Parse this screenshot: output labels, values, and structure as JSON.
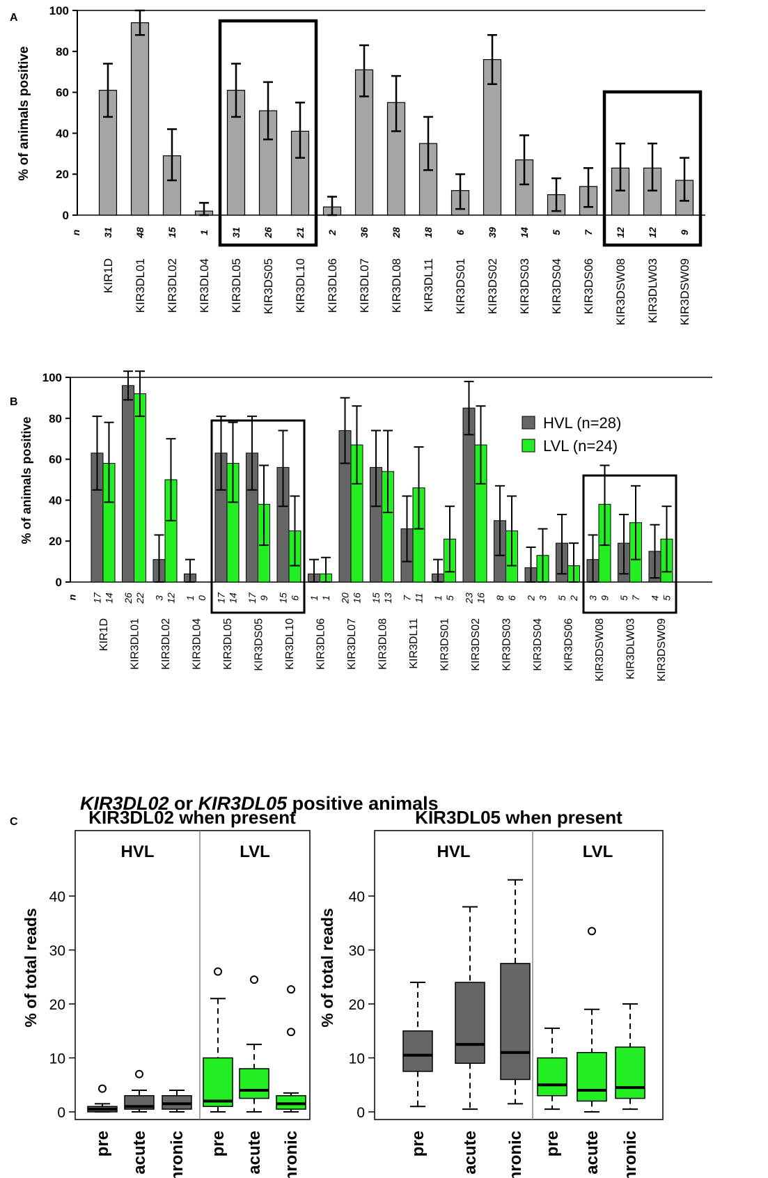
{
  "figure": {
    "panel_a_label": "A",
    "panel_b_label": "B",
    "panel_c_label": "C",
    "panel_c_title_part1": "KIR3DL02",
    "panel_c_title_part2": " or ",
    "panel_c_title_part3": "KIR3DL05",
    "panel_c_title_part4": "  positive animals"
  },
  "colors": {
    "hvl": "#666666",
    "lvl": "#22ee22",
    "single": "#a6a6a6"
  },
  "chart_data": [
    {
      "id": "A",
      "type": "bar",
      "ylabel": "% of animals positive",
      "ylim": [
        0,
        100
      ],
      "yticks": [
        0,
        20,
        40,
        60,
        80,
        100
      ],
      "n_label": "n",
      "categories": [
        "KIR1D",
        "KIR3DL01",
        "KIR3DL02",
        "KIR3DL04",
        "KIR3DL05",
        "KIR3DS05",
        "KIR3DL10",
        "KIR3DL06",
        "KIR3DL07",
        "KIR3DL08",
        "KIR3DL11",
        "KIR3DS01",
        "KIR3DS02",
        "KIR3DS03",
        "KIR3DS04",
        "KIR3DS06",
        "KIR3DSW08",
        "KIR3DLW03",
        "KIR3DSW09"
      ],
      "values": [
        61,
        94,
        29,
        2,
        61,
        51,
        41,
        4,
        71,
        55,
        35,
        12,
        76,
        27,
        10,
        14,
        23,
        23,
        17
      ],
      "err_low": [
        48,
        88,
        17,
        0,
        48,
        37,
        28,
        0,
        58,
        41,
        22,
        3,
        64,
        15,
        2,
        4,
        12,
        12,
        7
      ],
      "err_high": [
        74,
        100,
        42,
        6,
        74,
        65,
        55,
        9,
        83,
        68,
        48,
        20,
        88,
        39,
        18,
        23,
        35,
        35,
        28
      ],
      "n": [
        "31",
        "48",
        "15",
        "1",
        "31",
        "26",
        "21",
        "2",
        "36",
        "28",
        "18",
        "6",
        "39",
        "14",
        "5",
        "7",
        "12",
        "12",
        "9"
      ],
      "boxes": [
        [
          4,
          6
        ],
        [
          16,
          18
        ]
      ]
    },
    {
      "id": "B",
      "type": "bar",
      "ylabel": "% of animals positive",
      "ylim": [
        0,
        100
      ],
      "yticks": [
        0,
        20,
        40,
        60,
        80,
        100
      ],
      "n_label": "n",
      "categories": [
        "KIR1D",
        "KIR3DL01",
        "KIR3DL02",
        "KIR3DL04",
        "KIR3DL05",
        "KIR3DS05",
        "KIR3DL10",
        "KIR3DL06",
        "KIR3DL07",
        "KIR3DL08",
        "KIR3DL11",
        "KIR3DS01",
        "KIR3DS02",
        "KIR3DS03",
        "KIR3DS04",
        "KIR3DS06",
        "KIR3DSW08",
        "KIR3DLW03",
        "KIR3DSW09"
      ],
      "series": [
        {
          "name": "HVL (n=28)",
          "values": [
            63,
            96,
            11,
            4,
            63,
            63,
            56,
            4,
            74,
            56,
            26,
            4,
            85,
            30,
            7,
            19,
            11,
            19,
            15
          ],
          "err_low": [
            45,
            89,
            0,
            0,
            45,
            45,
            37,
            0,
            58,
            37,
            10,
            0,
            72,
            13,
            0,
            4,
            0,
            4,
            2
          ],
          "err_high": [
            81,
            103,
            23,
            11,
            81,
            81,
            74,
            11,
            90,
            74,
            42,
            11,
            98,
            47,
            17,
            33,
            23,
            33,
            28
          ],
          "n": [
            "17",
            "26",
            "3",
            "1",
            "17",
            "17",
            "15",
            "1",
            "20",
            "15",
            "7",
            "1",
            "23",
            "8",
            "2",
            "5",
            "3",
            "5",
            "4"
          ]
        },
        {
          "name": "LVL  (n=24)",
          "values": [
            58,
            92,
            50,
            0,
            58,
            38,
            25,
            4,
            67,
            54,
            46,
            21,
            67,
            25,
            13,
            8,
            38,
            29,
            21
          ],
          "err_low": [
            39,
            81,
            30,
            0,
            39,
            18,
            8,
            0,
            48,
            34,
            26,
            5,
            48,
            8,
            0,
            0,
            18,
            11,
            5
          ],
          "err_high": [
            78,
            103,
            70,
            0,
            78,
            57,
            42,
            12,
            86,
            74,
            66,
            37,
            86,
            42,
            26,
            19,
            57,
            47,
            37
          ],
          "n": [
            "14",
            "22",
            "12",
            "0",
            "14",
            "9",
            "6",
            "1",
            "16",
            "13",
            "11",
            "5",
            "16",
            "6",
            "3",
            "2",
            "9",
            "7",
            "5"
          ]
        }
      ],
      "legend_position": "top-right",
      "boxes": [
        [
          4,
          6
        ],
        [
          16,
          18
        ]
      ]
    },
    {
      "id": "C1",
      "type": "box",
      "title": "KIR3DL02 when present",
      "ylabel": "% of total reads",
      "ylim": [
        0,
        45
      ],
      "yticks": [
        0,
        10,
        20,
        30,
        40
      ],
      "groups": [
        "HVL",
        "LVL"
      ],
      "categories": [
        "pre",
        "acute",
        "chronic",
        "pre",
        "acute",
        "chronic"
      ],
      "group_of": [
        0,
        0,
        0,
        1,
        1,
        1
      ],
      "whisker_low": [
        0,
        0,
        0,
        0,
        0,
        0
      ],
      "q1": [
        0,
        0.5,
        0.5,
        1,
        2.5,
        0.5
      ],
      "median": [
        0.5,
        1,
        1.5,
        2,
        4,
        1.5
      ],
      "q3": [
        1,
        3,
        3,
        10,
        8,
        3
      ],
      "whisker_high": [
        1.5,
        4,
        4,
        21,
        12.5,
        3.5
      ],
      "outliers": [
        [
          4.3
        ],
        [
          7
        ],
        [],
        [
          26
        ],
        [
          24.5
        ],
        [
          22.7,
          14.8
        ]
      ]
    },
    {
      "id": "C2",
      "type": "box",
      "title": "KIR3DL05 when present",
      "ylabel": "% of total reads",
      "ylim": [
        0,
        45
      ],
      "yticks": [
        0,
        10,
        20,
        30,
        40
      ],
      "groups": [
        "HVL",
        "LVL"
      ],
      "categories": [
        "pre",
        "acute",
        "chronic",
        "pre",
        "acute",
        "chronic"
      ],
      "group_of": [
        0,
        0,
        0,
        1,
        1,
        1
      ],
      "whisker_low": [
        1,
        0.5,
        1.5,
        0.5,
        0,
        0.5
      ],
      "q1": [
        7.5,
        9,
        6,
        3,
        2,
        2.5
      ],
      "median": [
        10.5,
        12.5,
        11,
        5,
        4,
        4.5
      ],
      "q3": [
        15,
        24,
        27.5,
        10,
        11,
        12
      ],
      "whisker_high": [
        24,
        38,
        43,
        15.5,
        19,
        20
      ],
      "outliers": [
        [],
        [],
        [],
        [],
        [
          33.5
        ],
        []
      ]
    }
  ]
}
